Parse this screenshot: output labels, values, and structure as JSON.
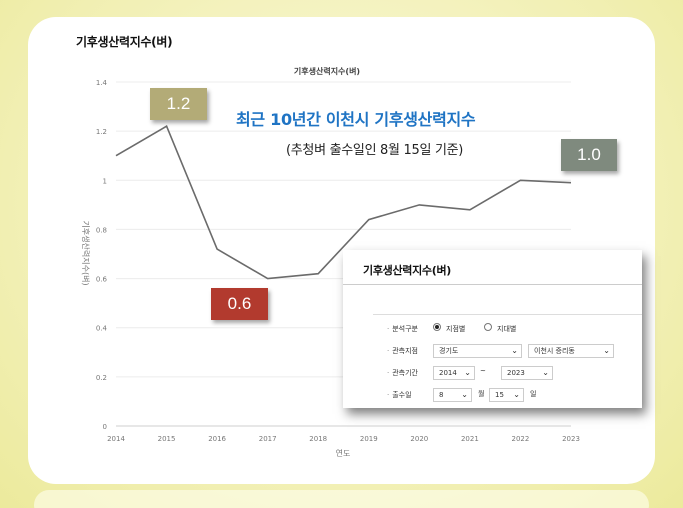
{
  "section_title": "기후생산력지수(벼)",
  "headline": "최근 10년간 이천시 기후생산력지수",
  "subline": "(추청벼 출수일인 8월 15일 기준)",
  "callouts": {
    "max": "1.2",
    "min": "0.6",
    "last": "1.0"
  },
  "colors": {
    "line": "#6b6b6b",
    "headline": "#1f74c4",
    "callout_max": "#b3ab77",
    "callout_min": "#b23a2e",
    "callout_last": "#7f8a7e"
  },
  "chart_data": {
    "type": "line",
    "title": "기후생산력지수(벼)",
    "xlabel": "연도",
    "ylabel": "기후생산력지수(벼)",
    "x": [
      "2014",
      "2015",
      "2016",
      "2017",
      "2018",
      "2019",
      "2020",
      "2021",
      "2022",
      "2023"
    ],
    "values": [
      1.1,
      1.22,
      0.72,
      0.6,
      0.62,
      0.84,
      0.9,
      0.88,
      1.0,
      0.99
    ],
    "ylim": [
      0,
      1.4
    ],
    "yticks": [
      "0",
      "0.2",
      "0.4",
      "0.6",
      "0.8",
      "1",
      "1.2",
      "1.4"
    ],
    "grid": true,
    "legend": "none"
  },
  "form": {
    "title": "기후생산력지수(벼)",
    "rows": {
      "type_label": "분석구분",
      "type_opt1": "지점별",
      "type_opt2": "지대별",
      "station_label": "관측지점",
      "province": "경기도",
      "station": "이천시 증리동",
      "period_label": "관측기간",
      "start_year": "2014",
      "tilde": "~",
      "end_year": "2023",
      "date_label": "출수일",
      "month": "8",
      "month_unit": "월",
      "day": "15",
      "day_unit": "일"
    }
  }
}
